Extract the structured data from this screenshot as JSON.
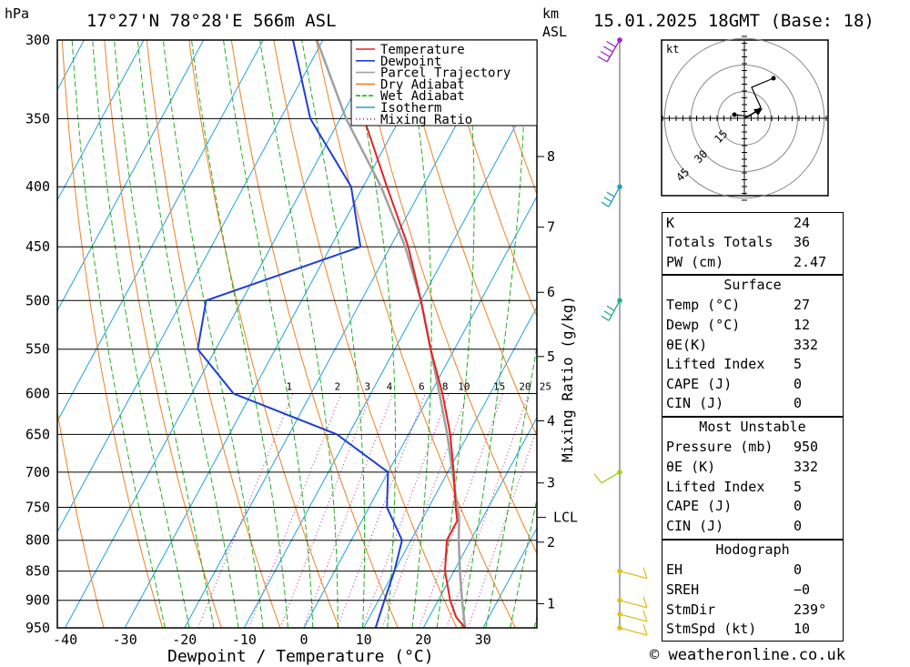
{
  "header": {
    "hpa_label": "hPa",
    "location": "17°27'N  78°28'E  566m  ASL",
    "km_label": "km",
    "asl_label": "ASL",
    "datetime": "15.01.2025  18GMT  (Base: 18)"
  },
  "chart_data": {
    "type": "line",
    "title": "",
    "xlabel": "Dewpoint / Temperature (°C)",
    "ylabel": "hPa",
    "right_axis_label": "Mixing Ratio (g/kg)",
    "ylim": [
      950,
      300
    ],
    "xlim": [
      -40,
      35
    ],
    "pressure_ticks": [
      300,
      350,
      400,
      450,
      500,
      550,
      600,
      650,
      700,
      750,
      800,
      850,
      900,
      950
    ],
    "temperature_ticks": [
      -40,
      -30,
      -20,
      -10,
      0,
      10,
      20,
      30
    ],
    "height_ticks_km": [
      {
        "km": "1",
        "p": 906
      },
      {
        "km": "2",
        "p": 803
      },
      {
        "km": "3",
        "p": 715
      },
      {
        "km": "4",
        "p": 633
      },
      {
        "km": "5",
        "p": 558
      },
      {
        "km": "6",
        "p": 492
      },
      {
        "km": "7",
        "p": 433
      },
      {
        "km": "8",
        "p": 377
      }
    ],
    "lcl": {
      "label": "LCL",
      "p": 765
    },
    "mixing_ratio_labels": [
      "1",
      "2",
      "3",
      "4",
      "6",
      "8",
      "10",
      "15",
      "20",
      "25"
    ],
    "legend": [
      {
        "name": "Temperature",
        "color": "#e82020"
      },
      {
        "name": "Dewpoint",
        "color": "#1f3fd6"
      },
      {
        "name": "Parcel Trajectory",
        "color": "#a0a0a0"
      },
      {
        "name": "Dry Adiabat",
        "color": "#f08020"
      },
      {
        "name": "Wet Adiabat",
        "color": "#20b020"
      },
      {
        "name": "Isotherm",
        "color": "#20a0e0"
      },
      {
        "name": "Mixing Ratio",
        "color": "#c020a0"
      }
    ],
    "series": [
      {
        "name": "Temperature",
        "points": [
          [
            950,
            27
          ],
          [
            930,
            24.5
          ],
          [
            900,
            22
          ],
          [
            850,
            18.5
          ],
          [
            800,
            16
          ],
          [
            770,
            16
          ],
          [
            750,
            14.5
          ],
          [
            700,
            11
          ],
          [
            650,
            7
          ],
          [
            600,
            2
          ],
          [
            550,
            -4
          ],
          [
            500,
            -10
          ],
          [
            450,
            -17
          ],
          [
            400,
            -26
          ],
          [
            350,
            -36
          ],
          [
            300,
            -45
          ]
        ]
      },
      {
        "name": "Dewpoint",
        "points": [
          [
            950,
            12
          ],
          [
            900,
            11
          ],
          [
            850,
            10
          ],
          [
            800,
            8.5
          ],
          [
            750,
            3
          ],
          [
            700,
            0
          ],
          [
            650,
            -12
          ],
          [
            600,
            -33
          ],
          [
            550,
            -43
          ],
          [
            500,
            -46
          ],
          [
            450,
            -25
          ],
          [
            400,
            -32
          ],
          [
            350,
            -45
          ],
          [
            300,
            -55
          ]
        ]
      },
      {
        "name": "Parcel Trajectory",
        "points": [
          [
            950,
            27
          ],
          [
            900,
            24
          ],
          [
            850,
            21
          ],
          [
            800,
            18
          ],
          [
            765,
            16
          ],
          [
            750,
            14.8
          ],
          [
            700,
            10.8
          ],
          [
            650,
            6.5
          ],
          [
            600,
            1.5
          ],
          [
            550,
            -4
          ],
          [
            500,
            -10
          ],
          [
            450,
            -17.5
          ],
          [
            400,
            -27
          ],
          [
            350,
            -39
          ],
          [
            300,
            -51
          ]
        ]
      }
    ],
    "wind_barbs": [
      {
        "p": 300,
        "color": "#a020c0"
      },
      {
        "p": 400,
        "color": "#20a0c0"
      },
      {
        "p": 500,
        "color": "#20b080"
      },
      {
        "p": 700,
        "color": "#a0d020"
      },
      {
        "p": 850,
        "color": "#e0c020"
      },
      {
        "p": 900,
        "color": "#e0c020"
      },
      {
        "p": 925,
        "color": "#e0c020"
      },
      {
        "p": 950,
        "color": "#e0c020"
      }
    ]
  },
  "hodograph": {
    "unit": "kt",
    "rings": [
      "15",
      "30",
      "45"
    ]
  },
  "indices": {
    "top": [
      {
        "label": "K",
        "value": "24"
      },
      {
        "label": "Totals Totals",
        "value": "36"
      },
      {
        "label": "PW (cm)",
        "value": "2.47"
      }
    ],
    "surface_title": "Surface",
    "surface": [
      {
        "label": "Temp (°C)",
        "value": "27"
      },
      {
        "label": "Dewp (°C)",
        "value": "12"
      },
      {
        "label": "θE(K)",
        "value": "332"
      },
      {
        "label": "Lifted Index",
        "value": "5"
      },
      {
        "label": "CAPE (J)",
        "value": "0"
      },
      {
        "label": "CIN (J)",
        "value": "0"
      }
    ],
    "unstable_title": "Most Unstable",
    "unstable": [
      {
        "label": "Pressure (mb)",
        "value": "950"
      },
      {
        "label": "θE (K)",
        "value": "332"
      },
      {
        "label": "Lifted Index",
        "value": "5"
      },
      {
        "label": "CAPE (J)",
        "value": "0"
      },
      {
        "label": "CIN (J)",
        "value": "0"
      }
    ],
    "hodo_title": "Hodograph",
    "hodo": [
      {
        "label": "EH",
        "value": "0"
      },
      {
        "label": "SREH",
        "value": "−0"
      },
      {
        "label": "StmDir",
        "value": "239°"
      },
      {
        "label": "StmSpd (kt)",
        "value": "10"
      }
    ]
  },
  "footer": {
    "copyright": "© weatheronline.co.uk"
  }
}
